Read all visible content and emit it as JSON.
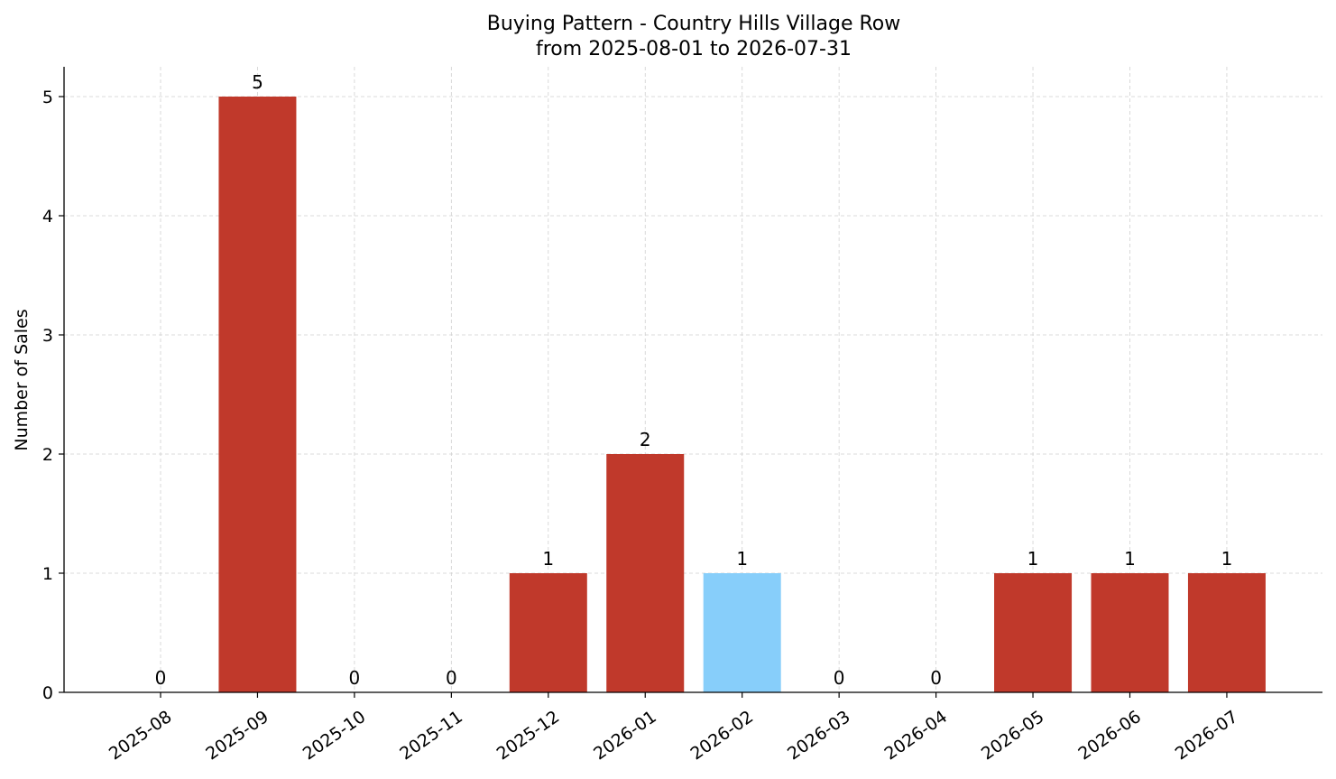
{
  "chart_data": {
    "type": "bar",
    "title": "Buying Pattern - Country Hills Village Row",
    "subtitle": "from 2025-08-01 to 2026-07-31",
    "xlabel": "",
    "ylabel": "Number of Sales",
    "categories": [
      "2025-08",
      "2025-09",
      "2025-10",
      "2025-11",
      "2025-12",
      "2026-01",
      "2026-02",
      "2026-03",
      "2026-04",
      "2026-05",
      "2026-06",
      "2026-07"
    ],
    "values": [
      0,
      5,
      0,
      0,
      1,
      2,
      1,
      0,
      0,
      1,
      1,
      1
    ],
    "data_labels": [
      "0",
      "5",
      "0",
      "0",
      "1",
      "2",
      "1",
      "0",
      "0",
      "1",
      "1",
      "1"
    ],
    "highlight_category": "2026-02",
    "ylim": [
      0,
      5.25
    ],
    "yticks": [
      0,
      1,
      2,
      3,
      4,
      5
    ],
    "grid": true,
    "legend": "none",
    "colors": {
      "bar": "#c0392b",
      "highlight": "#87cefa",
      "grid": "#d0d0d0",
      "axis": "#000000"
    }
  }
}
